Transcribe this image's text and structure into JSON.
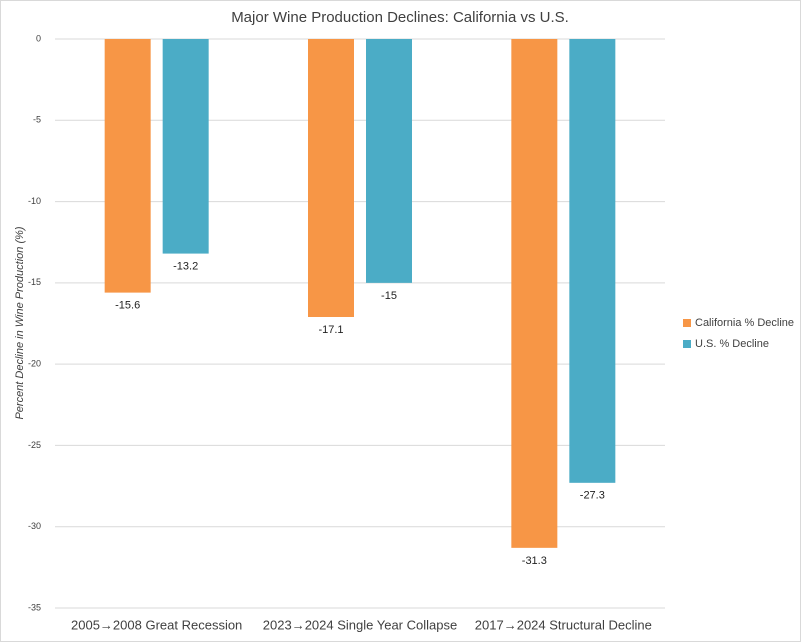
{
  "chart_data": {
    "type": "bar",
    "title": "Major Wine Production Declines: California vs U.S.",
    "y_label": "Percent Decline in Wine Production (%)",
    "categories": [
      "2005→2008 Great Recession",
      "2023→2024 Single Year Collapse",
      "2017→2024 Structural Decline"
    ],
    "series": [
      {
        "name": "California % Decline",
        "color": "#f79646",
        "values": [
          -15.6,
          -17.1,
          -31.3
        ]
      },
      {
        "name": "U.S. % Decline",
        "color": "#4bacc6",
        "values": [
          -13.2,
          -15,
          -27.3
        ]
      }
    ],
    "ylim": [
      -35,
      0
    ],
    "yticks": [
      0,
      -5,
      -10,
      -15,
      -20,
      -25,
      -30,
      -35
    ],
    "grid": true,
    "legend": "right"
  }
}
